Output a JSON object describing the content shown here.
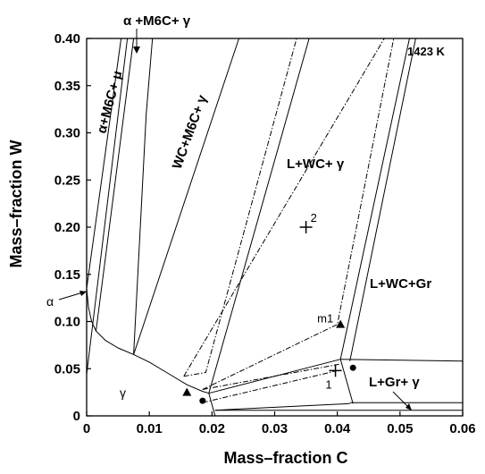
{
  "chart_data": {
    "type": "line",
    "temperature_label": "1423 K",
    "xlabel": "Mass–fraction C",
    "ylabel": "Mass–fraction W",
    "xlim": [
      0,
      0.06
    ],
    "ylim": [
      0,
      0.4
    ],
    "x_ticks": [
      0,
      0.01,
      0.02,
      0.03,
      0.04,
      0.05,
      0.06
    ],
    "x_tick_labels": [
      "0",
      "0.01",
      "0.02",
      "0.03",
      "0.04",
      "0.05",
      "0.06"
    ],
    "y_ticks": [
      0,
      0.05,
      0.1,
      0.15,
      0.2,
      0.25,
      0.3,
      0.35,
      0.4
    ],
    "y_tick_labels": [
      "0",
      "0.05",
      "0.10",
      "0.15",
      "0.20",
      "0.25",
      "0.30",
      "0.35",
      "0.40"
    ],
    "phase_boundaries": [
      {
        "points": [
          [
            0,
            0.135
          ],
          [
            0.0003,
            0.115
          ],
          [
            0.0008,
            0.1
          ],
          [
            0.0015,
            0.09
          ],
          [
            0.003,
            0.08
          ],
          [
            0.005,
            0.072
          ],
          [
            0.0075,
            0.065
          ],
          [
            0.01,
            0.057
          ],
          [
            0.013,
            0.045
          ],
          [
            0.016,
            0.033
          ],
          [
            0.0185,
            0.026
          ],
          [
            0.0195,
            0.024
          ]
        ]
      },
      {
        "points": [
          [
            0,
            0.135
          ],
          [
            0.0055,
            0.4
          ]
        ]
      },
      {
        "points": [
          [
            0,
            0.044
          ],
          [
            0.0065,
            0.4
          ]
        ]
      },
      {
        "points": [
          [
            0.0015,
            0.09
          ],
          [
            0.0075,
            0.4
          ]
        ]
      },
      {
        "points": [
          [
            0.0075,
            0.065
          ],
          [
            0.0095,
            0.32
          ],
          [
            0.0105,
            0.4
          ]
        ]
      },
      {
        "points": [
          [
            0.0075,
            0.065
          ],
          [
            0.0243,
            0.4
          ]
        ]
      },
      {
        "points": [
          [
            0.0195,
            0.024
          ],
          [
            0.0355,
            0.4
          ]
        ]
      },
      {
        "points": [
          [
            0.0195,
            0.024
          ],
          [
            0.0405,
            0.06
          ]
        ]
      },
      {
        "points": [
          [
            0.0195,
            0.024
          ],
          [
            0.0205,
            0
          ]
        ]
      },
      {
        "points": [
          [
            0.0205,
            0.006
          ],
          [
            0.042,
            0.013
          ]
        ]
      },
      {
        "points": [
          [
            0.0205,
            0.006
          ],
          [
            0.06,
            0.006
          ]
        ]
      },
      {
        "points": [
          [
            0.0405,
            0.06
          ],
          [
            0.0515,
            0.4
          ]
        ]
      },
      {
        "points": [
          [
            0.0405,
            0.06
          ],
          [
            0.0425,
            0.013
          ]
        ]
      },
      {
        "points": [
          [
            0.042,
            0.058
          ],
          [
            0.0525,
            0.4
          ]
        ]
      },
      {
        "points": [
          [
            0.0405,
            0.06
          ],
          [
            0.06,
            0.058
          ]
        ]
      },
      {
        "points": [
          [
            0.042,
            0.014
          ],
          [
            0.06,
            0.014
          ]
        ]
      }
    ],
    "tie_lines_dashdot": [
      {
        "points": [
          [
            0.0155,
            0.042
          ],
          [
            0.0475,
            0.4
          ]
        ]
      },
      {
        "points": [
          [
            0.0155,
            0.042
          ],
          [
            0.019,
            0.046
          ],
          [
            0.0335,
            0.4
          ]
        ]
      },
      {
        "points": [
          [
            0.0185,
            0.028
          ],
          [
            0.04,
            0.097
          ],
          [
            0.049,
            0.4
          ]
        ]
      },
      {
        "points": [
          [
            0.0185,
            0.028
          ],
          [
            0.0405,
            0.055
          ]
        ]
      },
      {
        "points": [
          [
            0.0185,
            0.014
          ],
          [
            0.04,
            0.048
          ]
        ]
      }
    ],
    "markers": [
      {
        "type": "plus",
        "x": 0.035,
        "y": 0.2,
        "label": "2"
      },
      {
        "type": "plus",
        "x": 0.0397,
        "y": 0.048,
        "label": "1"
      },
      {
        "type": "triangle",
        "x": 0.0405,
        "y": 0.097,
        "label": "m1"
      },
      {
        "type": "triangle",
        "x": 0.016,
        "y": 0.025
      },
      {
        "type": "circle",
        "x": 0.0185,
        "y": 0.016
      },
      {
        "type": "circle",
        "x": 0.0425,
        "y": 0.051
      }
    ],
    "region_labels": {
      "alpha_m6c_gamma": "α +M6C+ γ",
      "alpha_m6c_mu": "α+M6C+ μ",
      "wc_m6c_gamma": "WC+M6C+ γ",
      "l_wc_gamma": "L+WC+ γ",
      "l_wc_gr": "L+WC+Gr",
      "l_gr_gamma": "L+Gr+ γ",
      "alpha": "α",
      "gamma": "γ"
    }
  }
}
